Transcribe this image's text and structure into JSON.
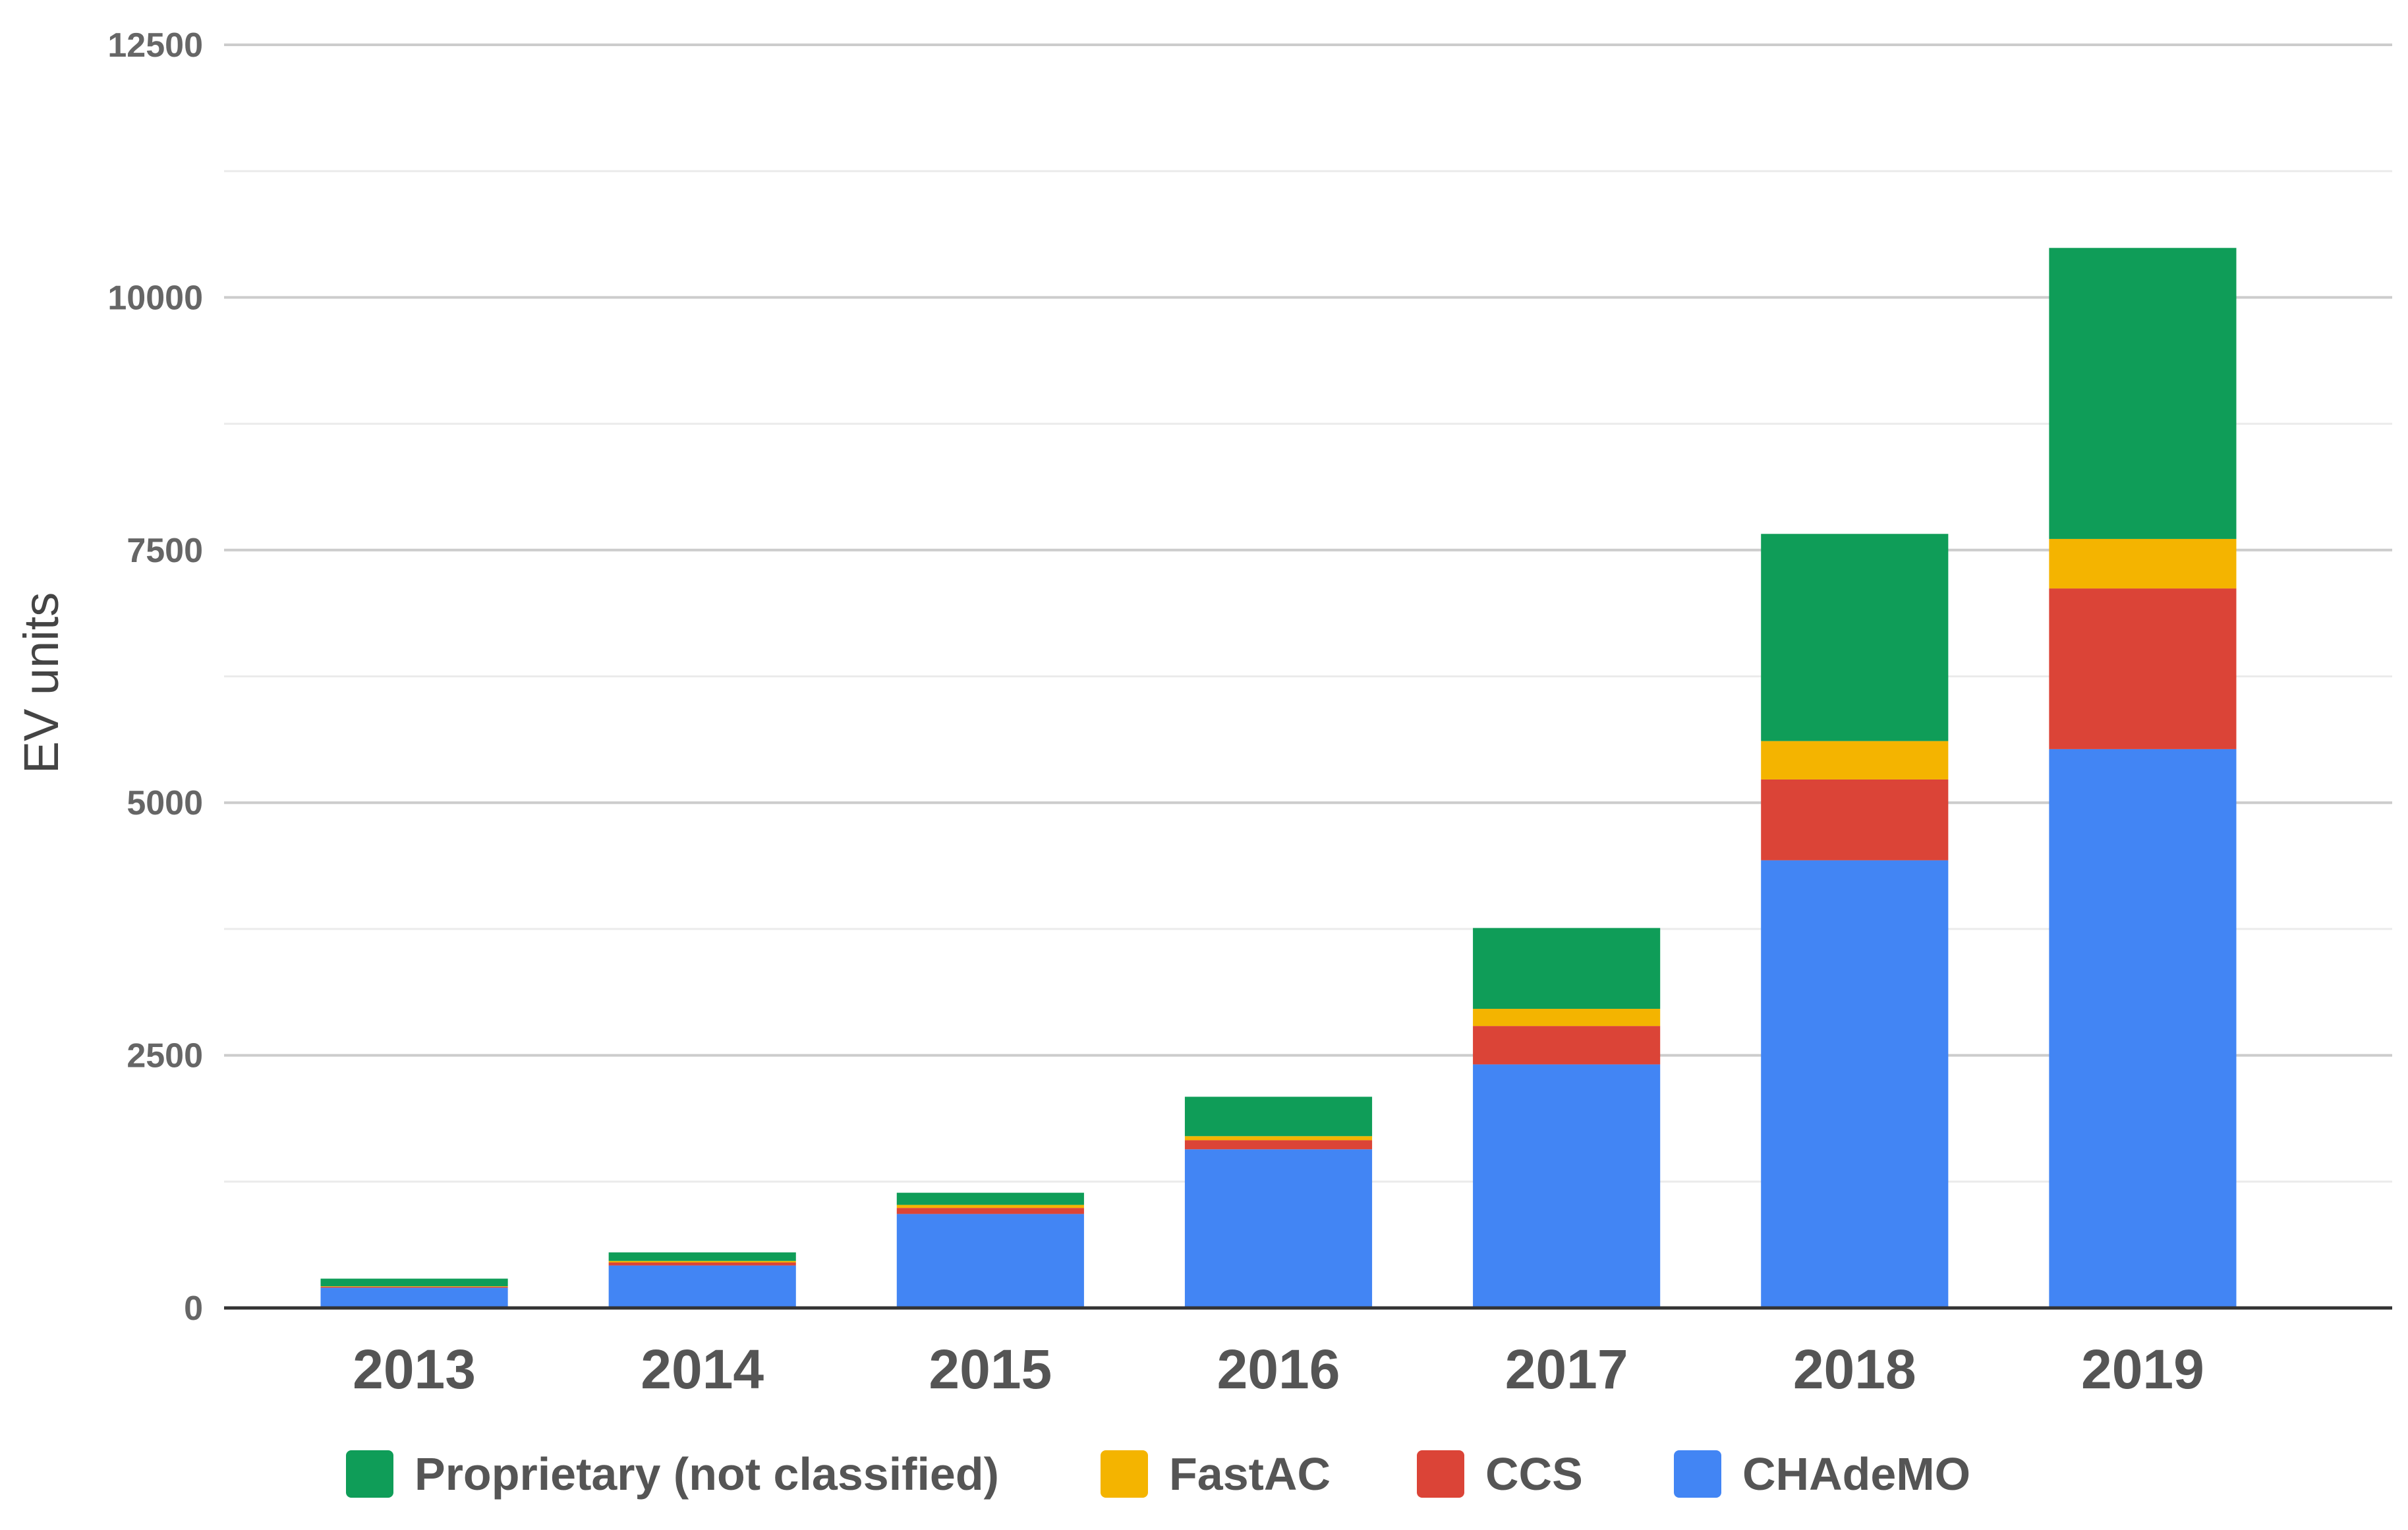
{
  "chart_data": {
    "type": "bar",
    "stacked": true,
    "categories": [
      "2013",
      "2014",
      "2015",
      "2016",
      "2017",
      "2018",
      "2019"
    ],
    "series": [
      {
        "name": "CHAdeMO",
        "color": "#4285F4",
        "values": [
          200,
          420,
          930,
          1570,
          2410,
          4430,
          5530
        ]
      },
      {
        "name": "CCS",
        "color": "#DB4437",
        "values": [
          10,
          30,
          60,
          90,
          380,
          800,
          1590
        ]
      },
      {
        "name": "FastAC",
        "color": "#F4B400",
        "values": [
          5,
          15,
          30,
          40,
          170,
          380,
          490
        ]
      },
      {
        "name": "Proprietary (not classified)",
        "color": "#0F9D58",
        "values": [
          75,
          85,
          120,
          390,
          800,
          2050,
          2880
        ]
      }
    ],
    "legend_order": [
      "Proprietary (not classified)",
      "FastAC",
      "CCS",
      "CHAdeMO"
    ],
    "ylabel": "EV units",
    "xlabel": "",
    "ylim": [
      0,
      12500
    ],
    "yticks": [
      0,
      2500,
      5000,
      7500,
      10000,
      12500
    ],
    "minor_gridlines": true,
    "legend_position": "bottom"
  }
}
